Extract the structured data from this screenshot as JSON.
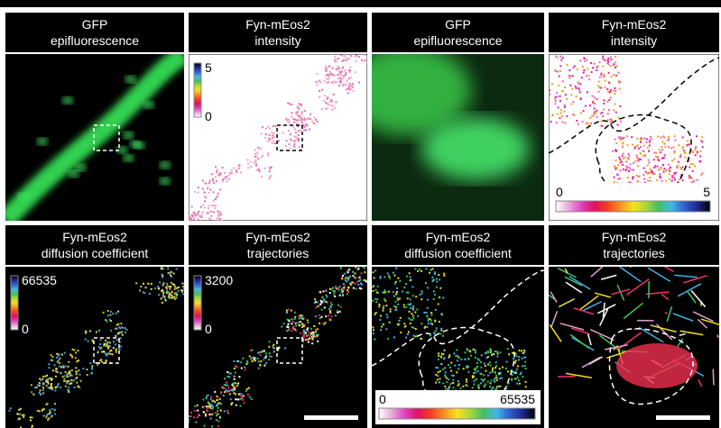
{
  "panels": [
    {
      "title": [
        "GFP",
        "epifluorescence"
      ]
    },
    {
      "title": [
        "Fyn-mEos2",
        "intensity"
      ],
      "scale": [
        "5",
        "0"
      ]
    },
    {
      "title": [
        "GFP",
        "epifluorescence"
      ]
    },
    {
      "title": [
        "Fyn-mEos2",
        "intensity"
      ],
      "scale": [
        "0",
        "5"
      ]
    },
    {
      "title": [
        "Fyn-mEos2",
        "diffusion coefficient"
      ],
      "scale": [
        "66535",
        "0"
      ]
    },
    {
      "title": [
        "Fyn-mEos2",
        "trajectories"
      ],
      "scale": [
        "3200",
        "0"
      ]
    },
    {
      "title": [
        "Fyn-mEos2",
        "diffusion coefficient"
      ],
      "scale": [
        "0",
        "65535"
      ]
    },
    {
      "title": [
        "Fyn-mEos2",
        "trajectories"
      ]
    }
  ]
}
